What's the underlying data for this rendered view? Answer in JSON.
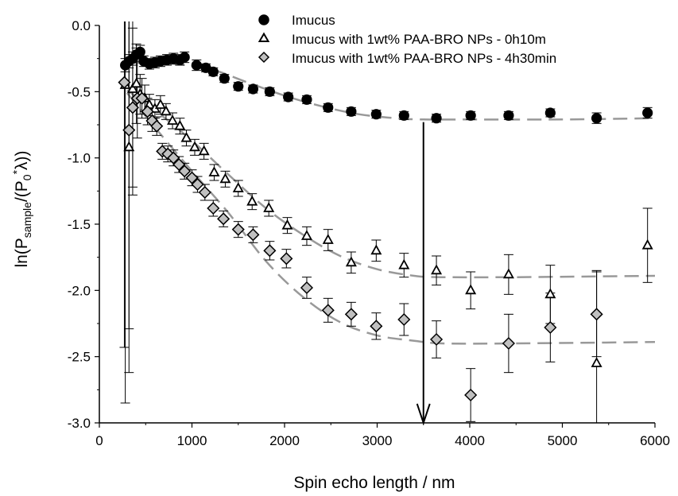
{
  "chart_data": {
    "type": "scatter",
    "title": "",
    "xlabel": "Spin echo length / nm",
    "ylabel": {
      "prefix": "ln(P",
      "sub1": "sample",
      "mid": "/(P",
      "sub2": "0",
      "sup": "*",
      "suffix": "λ))"
    },
    "xlim": [
      0,
      6000
    ],
    "ylim": [
      -3.0,
      0.0
    ],
    "xticks": [
      0,
      1000,
      2000,
      3000,
      4000,
      5000,
      6000
    ],
    "yticks": [
      0.0,
      -0.5,
      -1.0,
      -1.5,
      -2.0,
      -2.5,
      -3.0
    ],
    "xtick_labels": [
      "0",
      "1000",
      "2000",
      "3000",
      "4000",
      "5000",
      "6000"
    ],
    "ytick_labels": [
      "0.0",
      "-0.5",
      "-1.0",
      "-1.5",
      "-2.0",
      "-2.5",
      "-3.0"
    ],
    "grid": false,
    "legend_position": "top-right",
    "series": [
      {
        "name": "Imucus",
        "marker": "circle",
        "marker_fill": "#000000",
        "points": [
          [
            280,
            -0.3,
            0.05
          ],
          [
            320,
            -0.27,
            0.05
          ],
          [
            360,
            -0.25,
            0.05
          ],
          [
            400,
            -0.22,
            0.05
          ],
          [
            440,
            -0.2,
            0.05
          ],
          [
            480,
            -0.27,
            0.04
          ],
          [
            540,
            -0.29,
            0.04
          ],
          [
            600,
            -0.28,
            0.04
          ],
          [
            660,
            -0.27,
            0.04
          ],
          [
            730,
            -0.26,
            0.04
          ],
          [
            800,
            -0.25,
            0.04
          ],
          [
            870,
            -0.26,
            0.04
          ],
          [
            920,
            -0.24,
            0.04
          ],
          [
            1050,
            -0.3,
            0.04
          ],
          [
            1150,
            -0.32,
            0.03
          ],
          [
            1230,
            -0.35,
            0.03
          ],
          [
            1350,
            -0.4,
            0.03
          ],
          [
            1500,
            -0.46,
            0.03
          ],
          [
            1660,
            -0.48,
            0.03
          ],
          [
            1840,
            -0.5,
            0.03
          ],
          [
            2040,
            -0.54,
            0.03
          ],
          [
            2240,
            -0.56,
            0.03
          ],
          [
            2470,
            -0.62,
            0.03
          ],
          [
            2720,
            -0.65,
            0.03
          ],
          [
            2990,
            -0.67,
            0.03
          ],
          [
            3290,
            -0.68,
            0.03
          ],
          [
            3640,
            -0.7,
            0.03
          ],
          [
            4010,
            -0.68,
            0.03
          ],
          [
            4420,
            -0.68,
            0.03
          ],
          [
            4870,
            -0.66,
            0.03
          ],
          [
            5370,
            -0.7,
            0.04
          ],
          [
            5920,
            -0.66,
            0.04
          ]
        ]
      },
      {
        "name": "Imucus with 1wt% PAA-BRO NPs - 0h10m",
        "marker": "triangle",
        "marker_fill": "#ffffff",
        "points": [
          [
            280,
            -0.45,
            2.4
          ],
          [
            320,
            -0.92,
            1.7
          ],
          [
            360,
            -0.48,
            0.8
          ],
          [
            400,
            -0.44,
            0.3
          ],
          [
            440,
            -0.52,
            0.15
          ],
          [
            490,
            -0.55,
            0.1
          ],
          [
            540,
            -0.6,
            0.08
          ],
          [
            600,
            -0.63,
            0.07
          ],
          [
            660,
            -0.6,
            0.07
          ],
          [
            720,
            -0.65,
            0.06
          ],
          [
            790,
            -0.72,
            0.06
          ],
          [
            870,
            -0.76,
            0.06
          ],
          [
            940,
            -0.85,
            0.06
          ],
          [
            1030,
            -0.92,
            0.06
          ],
          [
            1130,
            -0.95,
            0.06
          ],
          [
            1240,
            -1.11,
            0.06
          ],
          [
            1360,
            -1.16,
            0.06
          ],
          [
            1500,
            -1.23,
            0.06
          ],
          [
            1650,
            -1.33,
            0.06
          ],
          [
            1830,
            -1.38,
            0.06
          ],
          [
            2030,
            -1.51,
            0.06
          ],
          [
            2240,
            -1.59,
            0.07
          ],
          [
            2470,
            -1.62,
            0.08
          ],
          [
            2720,
            -1.79,
            0.08
          ],
          [
            2990,
            -1.7,
            0.08
          ],
          [
            3290,
            -1.81,
            0.09
          ],
          [
            3640,
            -1.85,
            0.11
          ],
          [
            4010,
            -2.0,
            0.14
          ],
          [
            4420,
            -1.88,
            0.15
          ],
          [
            4870,
            -2.03,
            0.22
          ],
          [
            5370,
            -2.55,
            0.7
          ],
          [
            5920,
            -1.66,
            0.28
          ]
        ]
      },
      {
        "name": "Imucus with 1wt% PAA-BRO NPs - 4h30min",
        "marker": "diamond",
        "marker_fill": "#c0c0c0",
        "points": [
          [
            270,
            -0.43,
            2.0
          ],
          [
            320,
            -0.79,
            1.5
          ],
          [
            360,
            -0.62,
            0.6
          ],
          [
            410,
            -0.55,
            0.3
          ],
          [
            460,
            -0.55,
            0.15
          ],
          [
            520,
            -0.65,
            0.1
          ],
          [
            570,
            -0.72,
            0.08
          ],
          [
            620,
            -0.76,
            0.07
          ],
          [
            680,
            -0.95,
            0.06
          ],
          [
            740,
            -0.97,
            0.06
          ],
          [
            800,
            -1.0,
            0.06
          ],
          [
            860,
            -1.05,
            0.06
          ],
          [
            920,
            -1.1,
            0.06
          ],
          [
            1000,
            -1.15,
            0.06
          ],
          [
            1060,
            -1.2,
            0.06
          ],
          [
            1140,
            -1.26,
            0.06
          ],
          [
            1230,
            -1.38,
            0.06
          ],
          [
            1340,
            -1.46,
            0.06
          ],
          [
            1500,
            -1.54,
            0.06
          ],
          [
            1660,
            -1.58,
            0.06
          ],
          [
            1840,
            -1.7,
            0.07
          ],
          [
            2020,
            -1.76,
            0.07
          ],
          [
            2240,
            -1.98,
            0.08
          ],
          [
            2470,
            -2.15,
            0.09
          ],
          [
            2720,
            -2.18,
            0.09
          ],
          [
            2990,
            -2.27,
            0.1
          ],
          [
            3290,
            -2.22,
            0.12
          ],
          [
            3640,
            -2.37,
            0.14
          ],
          [
            4010,
            -2.79,
            0.2
          ],
          [
            4420,
            -2.4,
            0.22
          ],
          [
            4870,
            -2.28,
            0.26
          ],
          [
            5370,
            -2.18,
            0.32
          ]
        ]
      }
    ],
    "fits": [
      {
        "points": [
          [
            300,
            -0.28
          ],
          [
            800,
            -0.29
          ],
          [
            1200,
            -0.33
          ],
          [
            1600,
            -0.43
          ],
          [
            2000,
            -0.53
          ],
          [
            2400,
            -0.61
          ],
          [
            2800,
            -0.67
          ],
          [
            3200,
            -0.7
          ],
          [
            3500,
            -0.71
          ],
          [
            4000,
            -0.71
          ],
          [
            5000,
            -0.71
          ],
          [
            6000,
            -0.7
          ]
        ]
      },
      {
        "points": [
          [
            300,
            -0.49
          ],
          [
            600,
            -0.64
          ],
          [
            1000,
            -0.87
          ],
          [
            1400,
            -1.13
          ],
          [
            1800,
            -1.38
          ],
          [
            2200,
            -1.58
          ],
          [
            2600,
            -1.74
          ],
          [
            3000,
            -1.84
          ],
          [
            3400,
            -1.89
          ],
          [
            3700,
            -1.9
          ],
          [
            4500,
            -1.9
          ],
          [
            6000,
            -1.89
          ]
        ]
      },
      {
        "points": [
          [
            300,
            -0.51
          ],
          [
            600,
            -0.77
          ],
          [
            1000,
            -1.1
          ],
          [
            1400,
            -1.42
          ],
          [
            1800,
            -1.78
          ],
          [
            2200,
            -2.05
          ],
          [
            2600,
            -2.24
          ],
          [
            3000,
            -2.34
          ],
          [
            3400,
            -2.38
          ],
          [
            3700,
            -2.4
          ],
          [
            4500,
            -2.4
          ],
          [
            6000,
            -2.39
          ]
        ]
      }
    ],
    "annotation_arrow": {
      "x": 3500,
      "y_from": -0.73,
      "y_to": -3.0
    },
    "colors": {
      "fit_line": "#999999",
      "marker_stroke": "#000000",
      "axes": "#000000"
    }
  }
}
